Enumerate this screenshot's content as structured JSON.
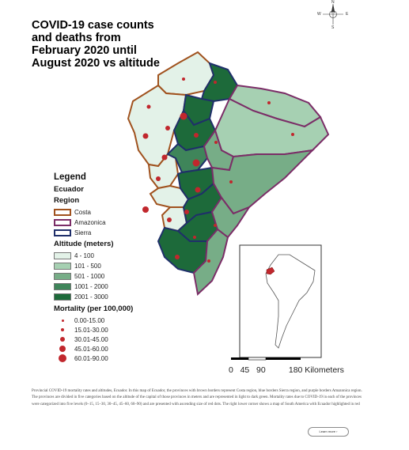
{
  "title": "COVID-19 case counts and deaths from February 2020 until August 2020 vs altitude",
  "legend": {
    "heading": "Legend",
    "country": "Ecuador",
    "region_heading": "Region",
    "regions": [
      {
        "label": "Costa",
        "color": "#a0521e"
      },
      {
        "label": "Amazonica",
        "color": "#7b2d67"
      },
      {
        "label": "Sierra",
        "color": "#1f2f6a"
      }
    ],
    "altitude_heading": "Altitude (meters)",
    "altitude_classes": [
      {
        "label": "4 - 100",
        "color": "#e3f2e8"
      },
      {
        "label": "101 - 500",
        "color": "#a6d0b2"
      },
      {
        "label": "501 - 1000",
        "color": "#77ad87"
      },
      {
        "label": "1001 - 2000",
        "color": "#3f855a"
      },
      {
        "label": "2001 - 3000",
        "color": "#1d6a3a"
      }
    ],
    "mortality_heading": "Mortality (per 100,000)",
    "mortality_classes": [
      {
        "label": "0.00-15.00"
      },
      {
        "label": "15.01-30.00"
      },
      {
        "label": "30.01-45.00"
      },
      {
        "label": "45.01-60.00"
      },
      {
        "label": "60.01-90.00"
      }
    ],
    "dot_color": "#c1272d"
  },
  "scale_bar": {
    "text": "0   45   90          180 Kilometers"
  },
  "compass": {
    "n": "N",
    "e": "E",
    "s": "S",
    "w": "W"
  },
  "caption": "Provincial COVID-19 mortality rates and altitudes, Ecuador. In this map of Ecuador, the provinces with brown borders represent Costa region, blue borders Sierra region, and purple borders Amazonica region. The provinces are divided in five categories based on the altitude of the capital of those provinces in meters and are represented in light to dark green. Mortality rates due to COVID-19 in each of the provinces were categorized into five levels (0–15, 15–30, 30–45, 45–60, 60–90) and are presented with ascending size of red dots. The right lower corner shows a map of South America with Ecuador highlighted in red",
  "learn_more_button": "Learn more ›"
}
